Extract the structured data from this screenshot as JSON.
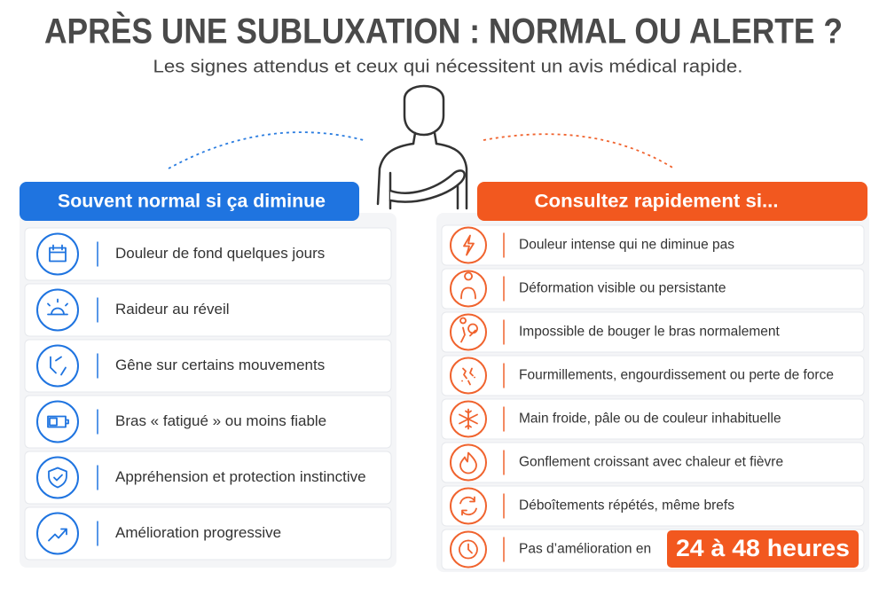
{
  "header": {
    "title": "APRÈS UNE SUBLUXATION : NORMAL OU ALERTE ?",
    "subtitle": "Les signes attendus et ceux qui nécessitent un avis médical rapide."
  },
  "left": {
    "heading": "Souvent normal si ça diminue",
    "items": [
      "Douleur de fond quelques jours",
      "Raideur au réveil",
      "Gêne sur certains mouvements",
      "Bras « fatigué » ou moins fiable",
      "Appréhension et protection instinctive",
      "Amélioration progressive"
    ]
  },
  "right": {
    "heading": "Consultez rapidement si...",
    "items": [
      "Douleur intense qui ne diminue pas",
      "Déformation visible ou persistante",
      "Impossible de bouger le bras normalement",
      "Fourmillements, engourdissement ou perte de force",
      "Main froide, pâle ou de couleur inhabituelle",
      "Gonflement croissant avec chaleur et fièvre",
      "Déboîtements répétés, même brefs",
      "Pas d’amélioration en"
    ],
    "highlight": "24 à 48 heures"
  }
}
